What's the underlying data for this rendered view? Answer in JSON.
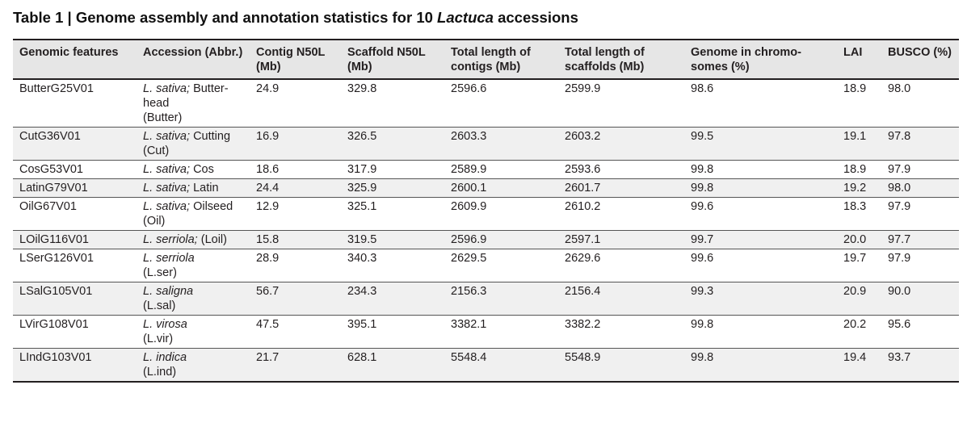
{
  "title": {
    "prefix": "Table 1 | Genome assembly and annotation statistics for 10 ",
    "italic": "Lactuca",
    "suffix": " accessions"
  },
  "columns": [
    "Genomic features",
    "Accession (Abbr.)",
    "Contig N50L (Mb)",
    "Scaffold N50L (Mb)",
    "Total length of contigs (Mb)",
    "Total length of scaffolds (Mb)",
    "Genome in chromo-somes (%)",
    "LAI",
    "BUSCO (%)"
  ],
  "rows": [
    {
      "feature": "ButterG25V01",
      "species": "L. sativa;",
      "name": "Butter-head",
      "abbr": "(Butter)",
      "contig": "24.9",
      "scaffold": "329.8",
      "len_contigs": "2596.6",
      "len_scaffolds": "2599.9",
      "chrom": "98.6",
      "lai": "18.9",
      "busco": "98.0"
    },
    {
      "feature": "CutG36V01",
      "species": "L. sativa;",
      "name": "Cutting",
      "abbr": "(Cut)",
      "contig": "16.9",
      "scaffold": "326.5",
      "len_contigs": "2603.3",
      "len_scaffolds": "2603.2",
      "chrom": "99.5",
      "lai": "19.1",
      "busco": "97.8"
    },
    {
      "feature": "CosG53V01",
      "species": "L. sativa;",
      "name": "Cos",
      "abbr": "",
      "contig": "18.6",
      "scaffold": "317.9",
      "len_contigs": "2589.9",
      "len_scaffolds": "2593.6",
      "chrom": "99.8",
      "lai": "18.9",
      "busco": "97.9"
    },
    {
      "feature": "LatinG79V01",
      "species": "L. sativa;",
      "name": "Latin",
      "abbr": "",
      "contig": "24.4",
      "scaffold": "325.9",
      "len_contigs": "2600.1",
      "len_scaffolds": "2601.7",
      "chrom": "99.8",
      "lai": "19.2",
      "busco": "98.0"
    },
    {
      "feature": "OilG67V01",
      "species": "L. sativa;",
      "name": "Oilseed",
      "abbr": "(Oil)",
      "contig": "12.9",
      "scaffold": "325.1",
      "len_contigs": "2609.9",
      "len_scaffolds": "2610.2",
      "chrom": "99.6",
      "lai": "18.3",
      "busco": "97.9"
    },
    {
      "feature": "LOilG116V01",
      "species": "L. serriola;",
      "name": "(Loil)",
      "abbr": "",
      "contig": "15.8",
      "scaffold": "319.5",
      "len_contigs": "2596.9",
      "len_scaffolds": "2597.1",
      "chrom": "99.7",
      "lai": "20.0",
      "busco": "97.7"
    },
    {
      "feature": "LSerG126V01",
      "species": "L. serriola",
      "name": "",
      "abbr": "(L.ser)",
      "contig": "28.9",
      "scaffold": "340.3",
      "len_contigs": "2629.5",
      "len_scaffolds": "2629.6",
      "chrom": "99.6",
      "lai": "19.7",
      "busco": "97.9"
    },
    {
      "feature": "LSalG105V01",
      "species": "L. saligna",
      "name": "",
      "abbr": "(L.sal)",
      "contig": "56.7",
      "scaffold": "234.3",
      "len_contigs": "2156.3",
      "len_scaffolds": "2156.4",
      "chrom": "99.3",
      "lai": "20.9",
      "busco": "90.0"
    },
    {
      "feature": "LVirG108V01",
      "species": "L. virosa",
      "name": "",
      "abbr": "(L.vir)",
      "contig": "47.5",
      "scaffold": "395.1",
      "len_contigs": "3382.1",
      "len_scaffolds": "3382.2",
      "chrom": "99.8",
      "lai": "20.2",
      "busco": "95.6"
    },
    {
      "feature": "LIndG103V01",
      "species": "L. indica",
      "name": "",
      "abbr": "(L.ind)",
      "contig": "21.7",
      "scaffold": "628.1",
      "len_contigs": "5548.4",
      "len_scaffolds": "5548.9",
      "chrom": "99.8",
      "lai": "19.4",
      "busco": "93.7"
    }
  ]
}
